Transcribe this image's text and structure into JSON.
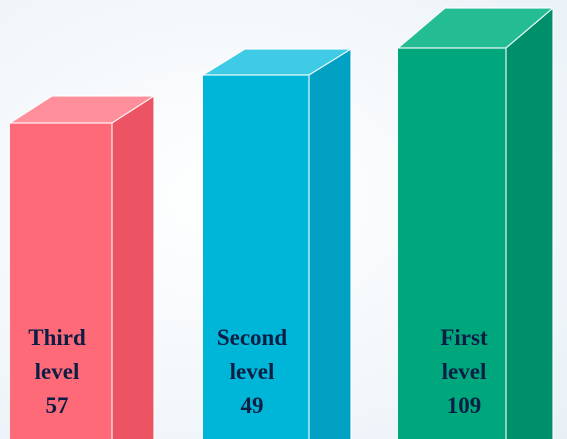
{
  "chart_data": {
    "type": "bar",
    "style": "3d-columns",
    "categories": [
      "Third level",
      "Second level",
      "First level"
    ],
    "series": [
      {
        "values": [
          57,
          49,
          109
        ],
        "colors": [
          "#ff6a78",
          "#00b6d8",
          "#00a67c"
        ]
      }
    ],
    "bars": [
      {
        "name_lines": [
          "Third",
          "level"
        ],
        "value": "57",
        "color": "#ff6a78",
        "dark": "#ec5464",
        "light": "#ff8f9a"
      },
      {
        "name_lines": [
          "Second",
          "level"
        ],
        "value": "49",
        "color": "#00b6d8",
        "dark": "#00a1c2",
        "light": "#3fcbe6"
      },
      {
        "name_lines": [
          "First",
          "level"
        ],
        "value": "109",
        "color": "#00a67c",
        "dark": "#008f6b",
        "light": "#24bd93"
      }
    ],
    "grid": false,
    "legend": "none"
  }
}
